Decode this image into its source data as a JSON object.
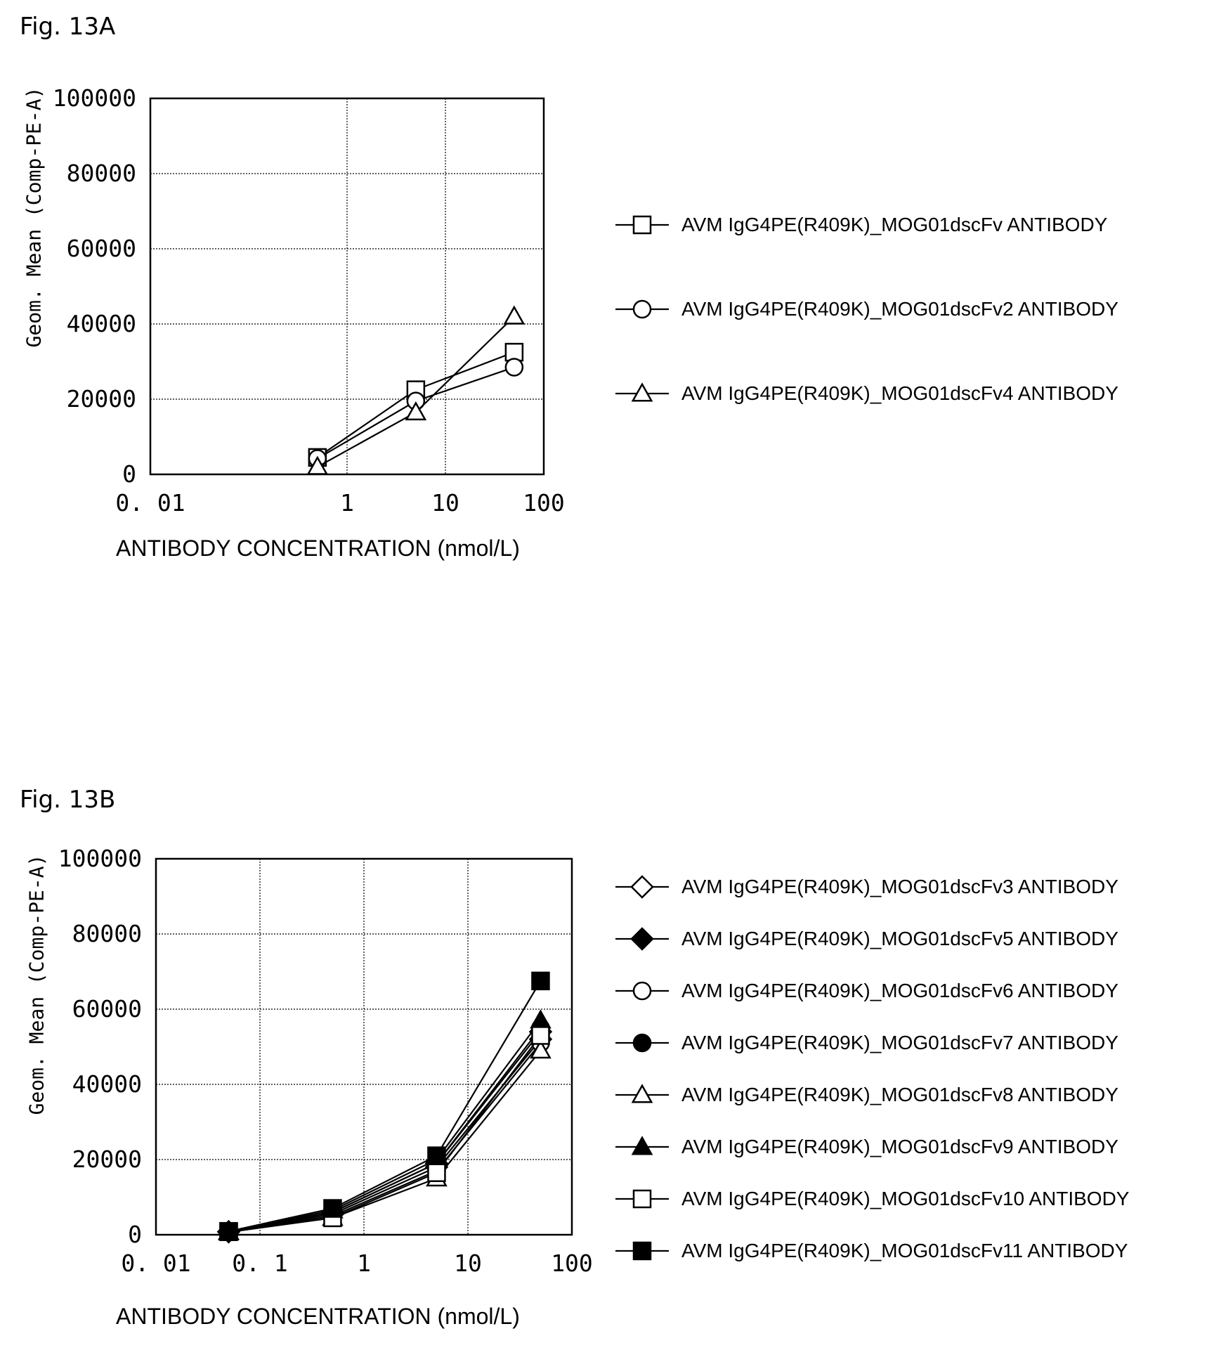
{
  "chart_data": [
    {
      "figure_label": "Fig. 13A",
      "type": "line",
      "xlabel": "ANTIBODY CONCENTRATION (nmol/L)",
      "ylabel": "Geom. Mean (Comp-PE-A)",
      "xscale": "log",
      "xlim": [
        0.01,
        100
      ],
      "ylim": [
        0,
        100000
      ],
      "xticks": [
        "0. 01",
        "1",
        "10",
        "100"
      ],
      "yticks": [
        "0",
        "20000",
        "40000",
        "60000",
        "80000",
        "100000"
      ],
      "grid": true,
      "legend_position": "right",
      "x": [
        0.5,
        5,
        50
      ],
      "series": [
        {
          "name": "AVM IgG4PE(R409K)_MOG01dscFv ANTIBODY",
          "marker": "square-open",
          "values": [
            4500,
            22500,
            32500
          ]
        },
        {
          "name": "AVM IgG4PE(R409K)_MOG01dscFv2 ANTIBODY",
          "marker": "circle-open",
          "values": [
            4200,
            19500,
            28500
          ]
        },
        {
          "name": "AVM IgG4PE(R409K)_MOG01dscFv4 ANTIBODY",
          "marker": "triangle-open",
          "values": [
            2000,
            16500,
            42000
          ]
        }
      ]
    },
    {
      "figure_label": "Fig. 13B",
      "type": "line",
      "xlabel": "ANTIBODY CONCENTRATION (nmol/L)",
      "ylabel": "Geom. Mean (Comp-PE-A)",
      "xscale": "log",
      "xlim": [
        0.01,
        100
      ],
      "ylim": [
        0,
        100000
      ],
      "xticks": [
        "0. 01",
        "0. 1",
        "1",
        "10",
        "100"
      ],
      "yticks": [
        "0",
        "20000",
        "40000",
        "60000",
        "80000",
        "100000"
      ],
      "grid": true,
      "legend_position": "right",
      "x": [
        0.05,
        0.5,
        5,
        50
      ],
      "series": [
        {
          "name": "AVM IgG4PE(R409K)_MOG01dscFv3 ANTIBODY",
          "marker": "diamond-open",
          "values": [
            800,
            5500,
            18000,
            52000
          ]
        },
        {
          "name": "AVM IgG4PE(R409K)_MOG01dscFv5 ANTIBODY",
          "marker": "diamond-filled",
          "values": [
            800,
            6000,
            19000,
            54000
          ]
        },
        {
          "name": "AVM IgG4PE(R409K)_MOG01dscFv6 ANTIBODY",
          "marker": "circle-open",
          "values": [
            800,
            5000,
            17000,
            51000
          ]
        },
        {
          "name": "AVM IgG4PE(R409K)_MOG01dscFv7 ANTIBODY",
          "marker": "circle-filled",
          "values": [
            800,
            6000,
            19000,
            55000
          ]
        },
        {
          "name": "AVM IgG4PE(R409K)_MOG01dscFv8 ANTIBODY",
          "marker": "triangle-open",
          "values": [
            700,
            4500,
            15000,
            49000
          ]
        },
        {
          "name": "AVM IgG4PE(R409K)_MOG01dscFv9 ANTIBODY",
          "marker": "triangle-filled",
          "values": [
            800,
            6500,
            20000,
            57000
          ]
        },
        {
          "name": "AVM IgG4PE(R409K)_MOG01dscFv10 ANTIBODY",
          "marker": "square-open",
          "values": [
            800,
            4500,
            16500,
            53000
          ]
        },
        {
          "name": "AVM IgG4PE(R409K)_MOG01dscFv11 ANTIBODY",
          "marker": "square-filled",
          "values": [
            900,
            7000,
            21000,
            67500
          ]
        }
      ]
    }
  ]
}
